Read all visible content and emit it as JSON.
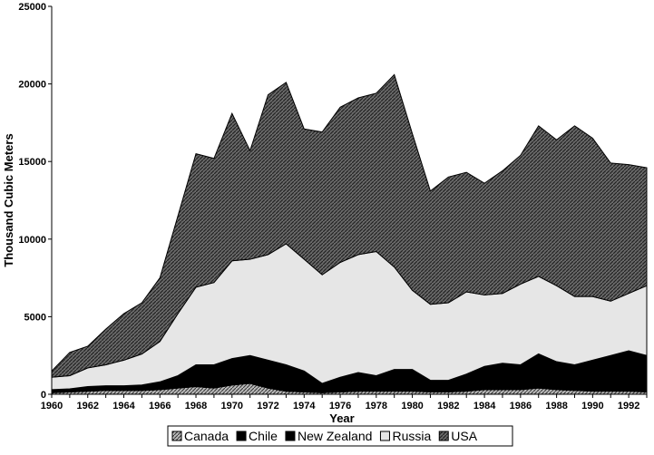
{
  "chart_data": {
    "type": "area",
    "stacked": true,
    "title": "",
    "xlabel": "Year",
    "ylabel": "Thousand Cubic Meters",
    "ylim": [
      0,
      25000
    ],
    "xlim": [
      1960,
      1993
    ],
    "yticks": [
      "0",
      "5000",
      "10000",
      "15000",
      "20000",
      "25000"
    ],
    "xticks": [
      "1960",
      "1962",
      "1964",
      "1966",
      "1968",
      "1970",
      "1972",
      "1974",
      "1976",
      "1978",
      "1980",
      "1982",
      "1984",
      "1986",
      "1988",
      "1990",
      "1992"
    ],
    "x": [
      1960,
      1961,
      1962,
      1963,
      1964,
      1965,
      1966,
      1967,
      1968,
      1969,
      1970,
      1971,
      1972,
      1973,
      1974,
      1975,
      1976,
      1977,
      1978,
      1979,
      1980,
      1981,
      1982,
      1983,
      1984,
      1985,
      1986,
      1987,
      1988,
      1989,
      1990,
      1991,
      1992,
      1993
    ],
    "legend_position": "bottom",
    "series": [
      {
        "name": "Canada",
        "color": "#888888",
        "values": [
          100,
          150,
          200,
          250,
          250,
          250,
          300,
          400,
          500,
          400,
          600,
          700,
          400,
          200,
          150,
          100,
          150,
          200,
          200,
          200,
          200,
          150,
          150,
          200,
          300,
          300,
          300,
          400,
          300,
          250,
          200,
          200,
          200,
          150
        ]
      },
      {
        "name": "Chile",
        "color": "#000000",
        "values": [
          0,
          0,
          0,
          0,
          0,
          0,
          0,
          0,
          0,
          0,
          0,
          0,
          0,
          0,
          0,
          0,
          0,
          0,
          50,
          200,
          600,
          350,
          350,
          700,
          1200,
          1300,
          1300,
          1700,
          1100,
          850,
          600,
          600,
          700,
          450
        ]
      },
      {
        "name": "New Zealand",
        "color": "#ffffff",
        "values": [
          200,
          200,
          300,
          300,
          300,
          350,
          500,
          800,
          1400,
          1500,
          1700,
          1800,
          1800,
          1700,
          1350,
          600,
          950,
          1200,
          950,
          1200,
          800,
          400,
          400,
          400,
          300,
          400,
          300,
          500,
          700,
          800,
          1400,
          1700,
          1900,
          1900
        ]
      },
      {
        "name": "Russia",
        "color": "#e6e6e6",
        "values": [
          800,
          850,
          1200,
          1350,
          1650,
          2000,
          2600,
          4000,
          5000,
          5300,
          6300,
          6200,
          6800,
          7800,
          7200,
          7000,
          7400,
          7600,
          8000,
          6600,
          5100,
          4900,
          5000,
          5300,
          4600,
          4500,
          5200,
          5000,
          4900,
          4400,
          4100,
          3500,
          3700,
          4500
        ]
      },
      {
        "name": "USA",
        "color": "#5a5a5a",
        "values": [
          400,
          1500,
          1400,
          2300,
          3000,
          3300,
          4100,
          6300,
          8600,
          8000,
          9500,
          7000,
          10300,
          10400,
          8400,
          9200,
          10000,
          10100,
          10200,
          12400,
          10100,
          7300,
          8100,
          7700,
          7200,
          7900,
          8300,
          9700,
          9400,
          11000,
          10200,
          8900,
          8300,
          7600
        ]
      }
    ]
  }
}
